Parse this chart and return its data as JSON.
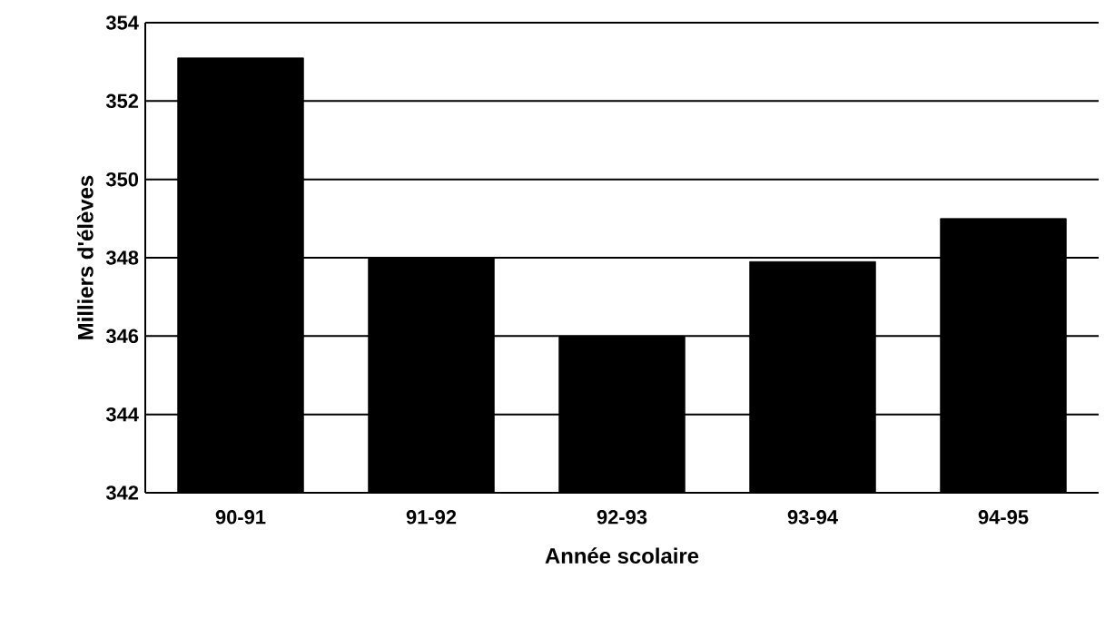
{
  "chart_data": {
    "type": "bar",
    "xlabel": "Année scolaire",
    "ylabel": "Milliers d'élèves",
    "categories": [
      "90-91",
      "91-92",
      "92-93",
      "93-94",
      "94-95"
    ],
    "values": [
      353.1,
      348,
      346,
      347.9,
      349
    ],
    "color": "#000000",
    "ylim": [
      342,
      354
    ],
    "yticks": [
      342,
      344,
      346,
      348,
      350,
      352,
      354
    ],
    "grid": "y"
  }
}
